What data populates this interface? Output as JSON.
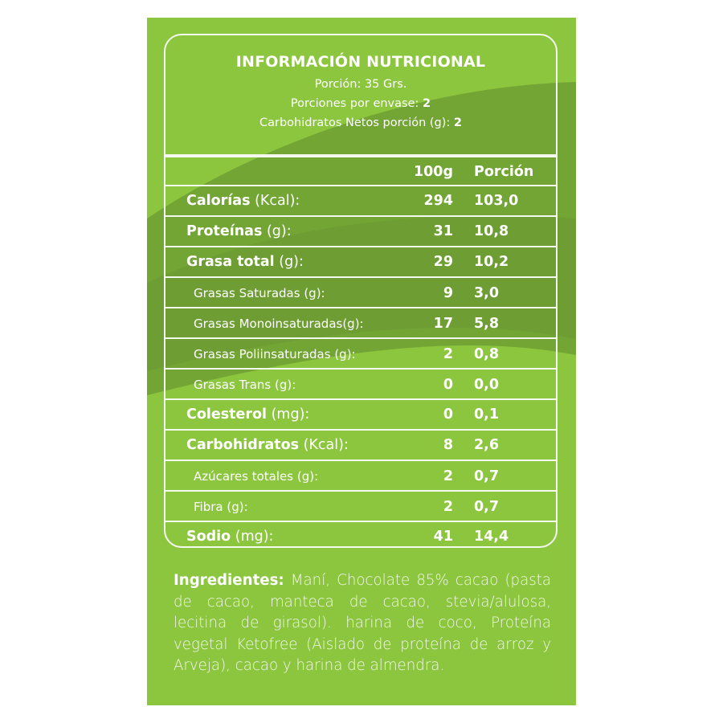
{
  "colors": {
    "background": "#8cc63f",
    "wave": "#5e8a2e",
    "text": "#ffffff"
  },
  "header": {
    "title": "INFORMACIÓN NUTRICIONAL",
    "portion_label": "Porción: 35 Grs.",
    "portions_label": "Porciones por envase: ",
    "portions_value": "2",
    "net_carbs_label": "Carbohidratos Netos porción (g): ",
    "net_carbs_value": "2"
  },
  "table": {
    "columns": [
      "100g",
      "Porción"
    ],
    "rows": [
      {
        "bold": "Calorías",
        "rest": " (Kcal):",
        "v100": "294",
        "vpor": "103,0",
        "sub": false
      },
      {
        "bold": "Proteínas",
        "rest": " (g):",
        "v100": "31",
        "vpor": "10,8",
        "sub": false
      },
      {
        "bold": "Grasa total",
        "rest": " (g):",
        "v100": "29",
        "vpor": "10,2",
        "sub": false
      },
      {
        "bold": "",
        "rest": "Grasas Saturadas (g):",
        "v100": "9",
        "vpor": "3,0",
        "sub": true
      },
      {
        "bold": "",
        "rest": "Grasas Monoinsaturadas(g):",
        "v100": "17",
        "vpor": "5,8",
        "sub": true
      },
      {
        "bold": "",
        "rest": "Grasas Poliinsaturadas (g):",
        "v100": "2",
        "vpor": "0,8",
        "sub": true
      },
      {
        "bold": "",
        "rest": "Grasas Trans (g):",
        "v100": "0",
        "vpor": "0,0",
        "sub": true
      },
      {
        "bold": "Colesterol",
        "rest": " (mg):",
        "v100": "0",
        "vpor": "0,1",
        "sub": false
      },
      {
        "bold": "Carbohidratos",
        "rest": " (Kcal):",
        "v100": "8",
        "vpor": "2,6",
        "sub": false
      },
      {
        "bold": "",
        "rest": "Azúcares totales (g):",
        "v100": "2",
        "vpor": "0,7",
        "sub": true
      },
      {
        "bold": "",
        "rest": "Fibra (g):",
        "v100": "2",
        "vpor": "0,7",
        "sub": true
      },
      {
        "bold": "Sodio",
        "rest": " (mg):",
        "v100": "41",
        "vpor": "14,4",
        "sub": false
      }
    ]
  },
  "ingredients": {
    "label": "Ingredientes:",
    "text": " Maní, Chocolate 85% cacao (pasta de cacao, manteca de cacao, stevia/alulosa, lecitina de girasol). harina de coco, Proteína vegetal Ketofree (Aislado de proteína de arroz y Arveja), cacao y harina de almendra."
  }
}
